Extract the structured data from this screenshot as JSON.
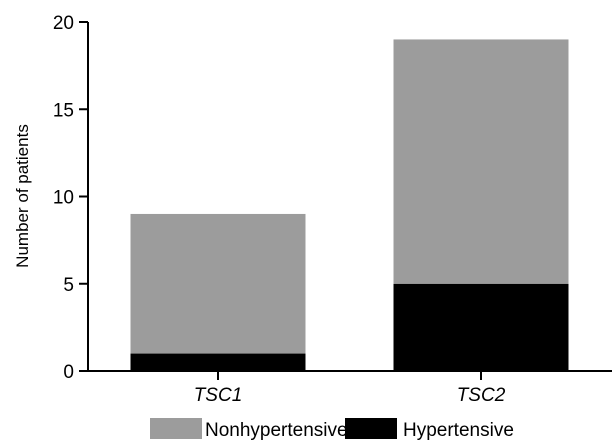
{
  "chart_data": {
    "type": "bar",
    "stacked": true,
    "categories": [
      "TSC1",
      "TSC2"
    ],
    "series": [
      {
        "name": "Hypertensive",
        "values": [
          1,
          5
        ],
        "color": "#000000"
      },
      {
        "name": "Nonhypertensive",
        "values": [
          8,
          14
        ],
        "color": "#9c9c9c"
      }
    ],
    "totals": [
      9,
      19
    ],
    "ylabel": "Number of patients",
    "xlabel": "",
    "ylim": [
      0,
      20
    ],
    "yticks": [
      0,
      5,
      10,
      15,
      20
    ],
    "legend": {
      "placement": "bottom",
      "order": [
        "Nonhypertensive",
        "Hypertensive"
      ]
    },
    "grid": false,
    "category_label_style": "italic"
  }
}
